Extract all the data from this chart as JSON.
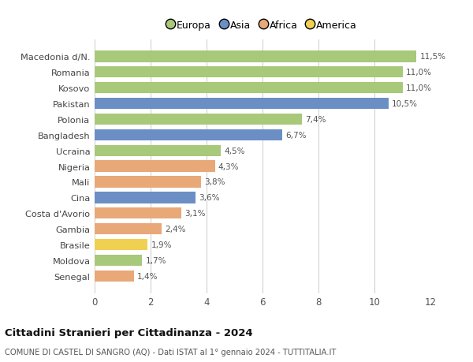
{
  "categories": [
    "Macedonia d/N.",
    "Romania",
    "Kosovo",
    "Pakistan",
    "Polonia",
    "Bangladesh",
    "Ucraina",
    "Nigeria",
    "Mali",
    "Cina",
    "Costa d'Avorio",
    "Gambia",
    "Brasile",
    "Moldova",
    "Senegal"
  ],
  "values": [
    11.5,
    11.0,
    11.0,
    10.5,
    7.4,
    6.7,
    4.5,
    4.3,
    3.8,
    3.6,
    3.1,
    2.4,
    1.9,
    1.7,
    1.4
  ],
  "labels": [
    "11,5%",
    "11,0%",
    "11,0%",
    "10,5%",
    "7,4%",
    "6,7%",
    "4,5%",
    "4,3%",
    "3,8%",
    "3,6%",
    "3,1%",
    "2,4%",
    "1,9%",
    "1,7%",
    "1,4%"
  ],
  "continents": [
    "Europa",
    "Europa",
    "Europa",
    "Asia",
    "Europa",
    "Asia",
    "Europa",
    "Africa",
    "Africa",
    "Asia",
    "Africa",
    "Africa",
    "America",
    "Europa",
    "Africa"
  ],
  "colors": {
    "Europa": "#a8c87a",
    "Asia": "#6b8ec5",
    "Africa": "#e8a878",
    "America": "#f0d050"
  },
  "legend_labels": [
    "Europa",
    "Asia",
    "Africa",
    "America"
  ],
  "title": "Cittadini Stranieri per Cittadinanza - 2024",
  "subtitle": "COMUNE DI CASTEL DI SANGRO (AQ) - Dati ISTAT al 1° gennaio 2024 - TUTTITALIA.IT",
  "xlim": [
    0,
    12
  ],
  "xticks": [
    0,
    2,
    4,
    6,
    8,
    10,
    12
  ],
  "background_color": "#ffffff",
  "grid_color": "#cccccc"
}
